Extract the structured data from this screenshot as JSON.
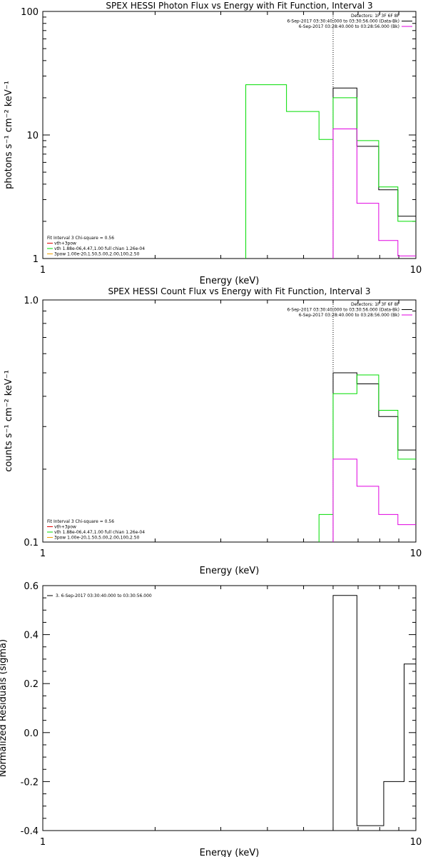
{
  "colors": {
    "black": "#000000",
    "magenta": "#e000e0",
    "green": "#00dd00",
    "orange": "#f0a000",
    "red": "#e00000"
  },
  "chart_data": [
    {
      "type": "line",
      "title": "SPEX HESSI Photon Flux vs Energy with Fit Function, Interval 3",
      "xlabel": "Energy (keV)",
      "ylabel": "photons s⁻¹ cm⁻² keV⁻¹",
      "xscale": "log",
      "yscale": "log",
      "xlim": [
        1,
        10
      ],
      "ylim": [
        1,
        100
      ],
      "xticks": [
        {
          "v": 1,
          "label": "1"
        },
        {
          "v": 10,
          "label": "10"
        }
      ],
      "yticks": [
        {
          "v": 1,
          "label": "1"
        },
        {
          "v": 10,
          "label": "10"
        },
        {
          "v": 100,
          "label": "100"
        }
      ],
      "vline": 6.0,
      "legend_tr": [
        {
          "text": "Detectors: 1F 3F 6F 8F",
          "color": "#000000"
        },
        {
          "text": "6-Sep-2017 03:30:40.000 to 03:30:56.000 (Data-Bk)",
          "color": "#000000"
        },
        {
          "text": "6-Sep-2017 03:28:40.000 to 03:28:56.000 (Bk)",
          "color": "#e000e0"
        }
      ],
      "legend_bl": [
        {
          "text": "Fit Interval 3   Chi-square = 0.56",
          "color": "#000000"
        },
        {
          "text": "vth+3pow",
          "color": "#e00000"
        },
        {
          "text": "vth 1.88e-06,4.47,1.00  full chian 1.26e-04",
          "color": "#00dd00"
        },
        {
          "text": "3pow 1.00e-20,1.50,5.00,2.00,100,2.50",
          "color": "#f0a000"
        }
      ],
      "series": [
        {
          "name": "Data-Bk",
          "color": "#000000",
          "edges": [
            6.0,
            6.95,
            7.95,
            8.95,
            9.95,
            10.0
          ],
          "values": [
            24,
            8.1,
            3.6,
            2.2,
            2.2
          ]
        },
        {
          "name": "vth",
          "color": "#00dd00",
          "edges": [
            3.5,
            4.5,
            5.5,
            6.0,
            6.95,
            7.95,
            8.95,
            9.95,
            10.0
          ],
          "values": [
            25.5,
            15.5,
            9.2,
            20,
            9.0,
            3.8,
            2.0,
            2.0
          ]
        },
        {
          "name": "Bk",
          "color": "#e000e0",
          "edges": [
            6.0,
            6.95,
            7.95,
            8.95,
            9.95,
            10.0
          ],
          "values": [
            11.2,
            2.8,
            1.4,
            1.05,
            1.05
          ]
        }
      ]
    },
    {
      "type": "line",
      "title": "SPEX HESSI Count Flux vs Energy with Fit Function, Interval 3",
      "xlabel": "Energy (keV)",
      "ylabel": "counts s⁻¹ cm⁻² keV⁻¹",
      "xscale": "log",
      "yscale": "log",
      "xlim": [
        1,
        10
      ],
      "ylim": [
        0.1,
        1.0
      ],
      "xticks": [
        {
          "v": 1,
          "label": "1"
        },
        {
          "v": 10,
          "label": "10"
        }
      ],
      "yticks": [
        {
          "v": 0.1,
          "label": "0.1"
        },
        {
          "v": 1.0,
          "label": "1.0"
        }
      ],
      "vline": 6.0,
      "legend_tr": [
        {
          "text": "Detectors: 1F 3F 6F 8F",
          "color": "#000000"
        },
        {
          "text": "6-Sep-2017 03:30:40.000 to 03:30:56.000 (Data-Bk)",
          "color": "#000000"
        },
        {
          "text": "6-Sep-2017 03:28:40.000 to 03:28:56.000 (Bk)",
          "color": "#e000e0"
        }
      ],
      "legend_bl": [
        {
          "text": "Fit Interval 3   Chi-square = 0.56",
          "color": "#000000"
        },
        {
          "text": "vth+3pow",
          "color": "#e00000"
        },
        {
          "text": "vth 1.88e-06,4.47,1.00  full chian 1.26e-04",
          "color": "#00dd00"
        },
        {
          "text": "3pow 1.00e-20,1.50,5.00,2.00,100,2.50",
          "color": "#f0a000"
        }
      ],
      "series": [
        {
          "name": "Data-Bk",
          "color": "#000000",
          "edges": [
            6.0,
            6.95,
            7.95,
            8.95,
            9.95,
            10.0
          ],
          "values": [
            0.5,
            0.45,
            0.33,
            0.24,
            0.24
          ]
        },
        {
          "name": "vth",
          "color": "#00dd00",
          "edges": [
            5.5,
            6.0,
            6.95,
            7.95,
            8.95,
            9.95,
            10.0
          ],
          "values": [
            0.13,
            0.41,
            0.49,
            0.35,
            0.22,
            0.22
          ]
        },
        {
          "name": "Bk",
          "color": "#e000e0",
          "edges": [
            6.0,
            6.95,
            7.95,
            8.95,
            9.95,
            10.0
          ],
          "values": [
            0.22,
            0.17,
            0.13,
            0.118,
            0.118
          ]
        }
      ]
    },
    {
      "type": "line",
      "title": "",
      "xlabel": "Energy (keV)",
      "ylabel": "Normalized Residuals (sigma)",
      "xscale": "log",
      "yscale": "linear",
      "xlim": [
        1,
        10
      ],
      "ylim": [
        -0.4,
        0.6
      ],
      "xticks": [
        {
          "v": 1,
          "label": "1"
        },
        {
          "v": 10,
          "label": "10"
        }
      ],
      "yticks": [
        {
          "v": -0.4,
          "label": "-0.4"
        },
        {
          "v": -0.2,
          "label": "-0.2"
        },
        {
          "v": 0.0,
          "label": "0.0"
        },
        {
          "v": 0.2,
          "label": "0.2"
        },
        {
          "v": 0.4,
          "label": "0.4"
        },
        {
          "v": 0.6,
          "label": "0.6"
        }
      ],
      "legend_tl": [
        {
          "text": "3.  6-Sep-2017 03:30:40.000 to 03:30:56.000",
          "color": "#000000"
        }
      ],
      "series": [
        {
          "name": "residuals",
          "color": "#000000",
          "edges": [
            6.0,
            6.95,
            8.2,
            9.3,
            10.0
          ],
          "values": [
            0.56,
            -0.38,
            -0.2,
            0.28
          ]
        }
      ]
    }
  ]
}
